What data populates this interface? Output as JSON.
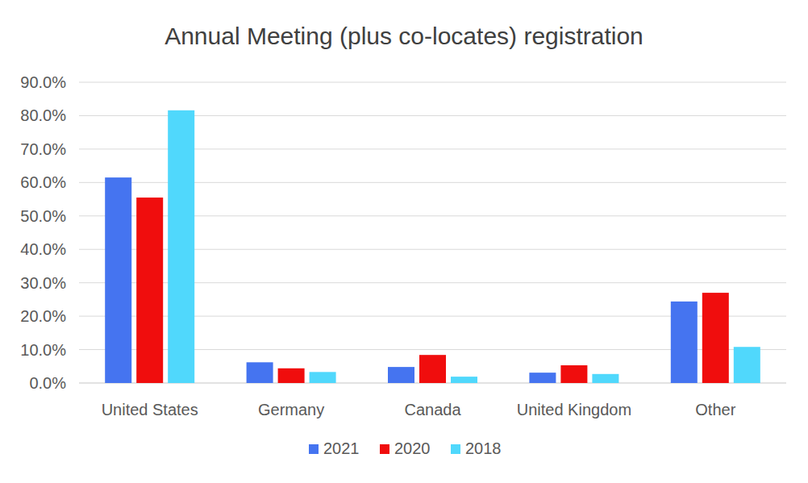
{
  "chart_data": {
    "type": "bar",
    "title": "Annual Meeting (plus co-locates) registration",
    "categories": [
      "United States",
      "Germany",
      "Canada",
      "United Kingdom",
      "Other"
    ],
    "series": [
      {
        "name": "2021",
        "color": "#4574f0",
        "values": [
          61.5,
          6.2,
          4.8,
          3.1,
          24.4
        ]
      },
      {
        "name": "2020",
        "color": "#f00d0d",
        "values": [
          55.5,
          4.4,
          8.4,
          5.3,
          27.0
        ]
      },
      {
        "name": "2018",
        "color": "#50d8fc",
        "values": [
          81.6,
          3.3,
          1.9,
          2.7,
          10.8
        ]
      }
    ],
    "ylim": [
      0,
      90
    ],
    "yticks": [
      {
        "value": 0,
        "label": "0.0%"
      },
      {
        "value": 10,
        "label": "10.0%"
      },
      {
        "value": 20,
        "label": "20.0%"
      },
      {
        "value": 30,
        "label": "30.0%"
      },
      {
        "value": 40,
        "label": "40.0%"
      },
      {
        "value": 50,
        "label": "50.0%"
      },
      {
        "value": 60,
        "label": "60.0%"
      },
      {
        "value": 70,
        "label": "70.0%"
      },
      {
        "value": 80,
        "label": "80.0%"
      },
      {
        "value": 90,
        "label": "90.0%"
      }
    ],
    "grid": true,
    "legend": "bottom"
  }
}
